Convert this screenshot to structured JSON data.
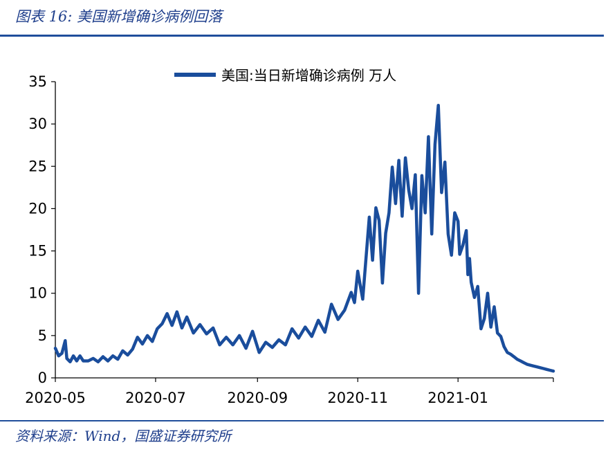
{
  "header": {
    "title": "图表 16:  美国新增确诊病例回落"
  },
  "footer": {
    "source": "资料来源：Wind，国盛证券研究所"
  },
  "colors": {
    "accent": "#1f4e9b",
    "line": "#1a4d9c"
  },
  "chart_data": {
    "type": "line",
    "title": "",
    "xlabel": "",
    "ylabel": "",
    "ylim": [
      0,
      35
    ],
    "yticks": [
      "0",
      "5",
      "10",
      "15",
      "20",
      "25",
      "30",
      "35"
    ],
    "xticks": [
      "2020-05",
      "2020-07",
      "2020-09",
      "2020-11",
      "2021-01"
    ],
    "grid": false,
    "legend": "top-center",
    "series": [
      {
        "name": "美国:当日新增确诊病例 万人",
        "x": [
          "2020-05-01",
          "2020-05-03",
          "2020-05-05",
          "2020-05-07",
          "2020-05-08",
          "2020-05-10",
          "2020-05-12",
          "2020-05-14",
          "2020-05-16",
          "2020-05-18",
          "2020-05-21",
          "2020-05-24",
          "2020-05-27",
          "2020-05-30",
          "2020-06-02",
          "2020-06-05",
          "2020-06-08",
          "2020-06-11",
          "2020-06-14",
          "2020-06-17",
          "2020-06-20",
          "2020-06-23",
          "2020-06-26",
          "2020-06-29",
          "2020-07-02",
          "2020-07-05",
          "2020-07-08",
          "2020-07-11",
          "2020-07-14",
          "2020-07-17",
          "2020-07-20",
          "2020-07-24",
          "2020-07-28",
          "2020-08-01",
          "2020-08-05",
          "2020-08-09",
          "2020-08-13",
          "2020-08-17",
          "2020-08-21",
          "2020-08-25",
          "2020-08-29",
          "2020-09-02",
          "2020-09-06",
          "2020-09-10",
          "2020-09-14",
          "2020-09-18",
          "2020-09-22",
          "2020-09-26",
          "2020-09-30",
          "2020-10-04",
          "2020-10-08",
          "2020-10-12",
          "2020-10-16",
          "2020-10-20",
          "2020-10-24",
          "2020-10-28",
          "2020-10-30",
          "2020-11-01",
          "2020-11-04",
          "2020-11-06",
          "2020-11-08",
          "2020-11-10",
          "2020-11-12",
          "2020-11-14",
          "2020-11-16",
          "2020-11-18",
          "2020-11-20",
          "2020-11-22",
          "2020-11-24",
          "2020-11-26",
          "2020-11-28",
          "2020-11-30",
          "2020-12-02",
          "2020-12-04",
          "2020-12-06",
          "2020-12-08",
          "2020-12-10",
          "2020-12-12",
          "2020-12-14",
          "2020-12-16",
          "2020-12-18",
          "2020-12-20",
          "2020-12-22",
          "2020-12-24",
          "2020-12-26",
          "2020-12-28",
          "2020-12-30",
          "2021-01-01",
          "2021-01-02",
          "2021-01-04",
          "2021-01-06",
          "2021-01-07",
          "2021-01-08",
          "2021-01-09",
          "2021-01-11",
          "2021-01-13",
          "2021-01-15",
          "2021-01-17",
          "2021-01-19",
          "2021-01-21",
          "2021-01-23",
          "2021-01-25",
          "2021-01-27",
          "2021-01-29",
          "2021-01-31",
          "2021-02-02",
          "2021-02-04",
          "2021-02-06",
          "2021-02-08",
          "2021-02-10",
          "2021-02-12",
          "2021-02-14",
          "2021-02-16",
          "2021-02-18",
          "2021-02-20",
          "2021-02-22",
          "2021-02-24",
          "2021-02-26",
          "2021-02-28"
        ],
        "values": [
          3.5,
          2.6,
          2.9,
          4.4,
          2.3,
          1.9,
          2.6,
          2.0,
          2.6,
          2.0,
          2.0,
          2.3,
          1.9,
          2.5,
          2.0,
          2.6,
          2.2,
          3.2,
          2.7,
          3.4,
          4.8,
          4.0,
          5.0,
          4.3,
          5.8,
          6.4,
          7.6,
          6.2,
          7.8,
          5.9,
          7.2,
          5.3,
          6.3,
          5.2,
          5.9,
          3.9,
          4.8,
          3.9,
          5.0,
          3.5,
          5.5,
          3.0,
          4.2,
          3.6,
          4.5,
          3.9,
          5.8,
          4.7,
          6.0,
          4.9,
          6.8,
          5.4,
          8.7,
          6.9,
          8.0,
          10.1,
          8.9,
          12.6,
          9.3,
          14.1,
          19.0,
          13.9,
          20.1,
          18.6,
          11.2,
          17.1,
          19.5,
          24.9,
          20.6,
          25.7,
          19.1,
          26.0,
          22.2,
          20.0,
          24.0,
          10.0,
          23.9,
          19.5,
          28.5,
          17.0,
          27.6,
          32.2,
          21.9,
          25.5,
          17.0,
          14.5,
          19.5,
          18.5,
          14.6,
          15.7,
          17.4,
          12.2,
          14.1,
          11.3,
          9.5,
          10.8,
          5.8,
          7.0,
          10.0,
          6.0,
          8.4,
          5.3,
          4.9,
          3.7,
          3.0,
          2.8,
          2.5,
          2.2,
          2.0,
          1.8,
          1.6,
          1.5,
          1.4,
          1.3,
          1.2,
          1.1,
          1.0,
          0.9,
          0.8
        ]
      }
    ]
  }
}
